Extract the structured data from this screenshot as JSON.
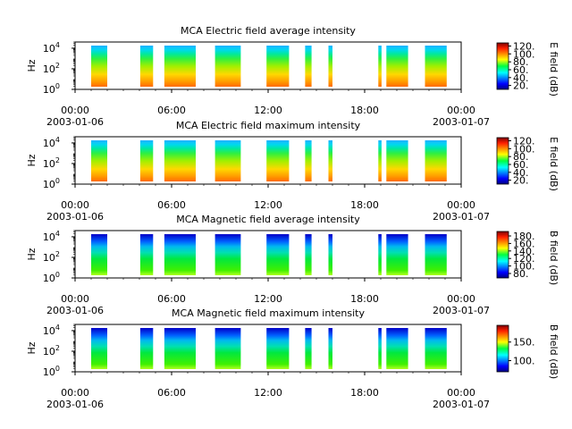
{
  "chart_data": [
    {
      "type": "heatmap",
      "title": "MCA  Electric field average intensity",
      "ylabel": "Hz",
      "y_scale": "log",
      "ylim": [
        1,
        40000
      ],
      "y_ticks": [
        {
          "base": "10",
          "exp": "0"
        },
        {
          "base": "10",
          "exp": "2"
        },
        {
          "base": "10",
          "exp": "4"
        }
      ],
      "xlim": [
        "2003-01-06 00:00",
        "2003-01-07 00:00"
      ],
      "x_ticks": [
        "00:00",
        "06:00",
        "12:00",
        "18:00",
        "00:00"
      ],
      "x_dates": {
        "start": "2003-01-06",
        "end": "2003-01-07"
      },
      "colorbar": {
        "label": "E field (dB)",
        "ticks": [
          "20.",
          "40.",
          "60.",
          "80.",
          "100.",
          "120."
        ],
        "range": [
          10,
          128
        ],
        "colormap": "jet"
      },
      "palette": "efield",
      "data_segments_hours": [
        [
          1.0,
          2.0
        ],
        [
          4.05,
          4.85
        ],
        [
          5.55,
          7.5
        ],
        [
          8.7,
          10.3
        ],
        [
          11.9,
          13.3
        ],
        [
          14.3,
          14.7
        ],
        [
          15.75,
          16.0
        ],
        [
          18.85,
          19.05
        ],
        [
          19.35,
          20.7
        ],
        [
          21.75,
          23.1
        ]
      ]
    },
    {
      "type": "heatmap",
      "title": "MCA  Electric field maximum intensity",
      "ylabel": "Hz",
      "y_scale": "log",
      "ylim": [
        1,
        40000
      ],
      "y_ticks": [
        {
          "base": "10",
          "exp": "0"
        },
        {
          "base": "10",
          "exp": "2"
        },
        {
          "base": "10",
          "exp": "4"
        }
      ],
      "xlim": [
        "2003-01-06 00:00",
        "2003-01-07 00:00"
      ],
      "x_ticks": [
        "00:00",
        "06:00",
        "12:00",
        "18:00",
        "00:00"
      ],
      "x_dates": {
        "start": "2003-01-06",
        "end": "2003-01-07"
      },
      "colorbar": {
        "label": "E field (dB)",
        "ticks": [
          "20.",
          "40.",
          "60.",
          "80.",
          "100.",
          "120."
        ],
        "range": [
          10,
          128
        ],
        "colormap": "jet"
      },
      "palette": "efield",
      "data_segments_hours": [
        [
          1.0,
          2.0
        ],
        [
          4.05,
          4.85
        ],
        [
          5.55,
          7.5
        ],
        [
          8.7,
          10.3
        ],
        [
          11.9,
          13.3
        ],
        [
          14.3,
          14.7
        ],
        [
          15.75,
          16.0
        ],
        [
          18.85,
          19.05
        ],
        [
          19.35,
          20.7
        ],
        [
          21.75,
          23.1
        ]
      ]
    },
    {
      "type": "heatmap",
      "title": "MCA  Magnetic field average intensity",
      "ylabel": "Hz",
      "y_scale": "log",
      "ylim": [
        1,
        40000
      ],
      "y_ticks": [
        {
          "base": "10",
          "exp": "0"
        },
        {
          "base": "10",
          "exp": "2"
        },
        {
          "base": "10",
          "exp": "4"
        }
      ],
      "xlim": [
        "2003-01-06 00:00",
        "2003-01-07 00:00"
      ],
      "x_ticks": [
        "00:00",
        "06:00",
        "12:00",
        "18:00",
        "00:00"
      ],
      "x_dates": {
        "start": "2003-01-06",
        "end": "2003-01-07"
      },
      "colorbar": {
        "label": "B field (dB)",
        "ticks": [
          "80.",
          "100.",
          "120.",
          "140.",
          "160.",
          "180."
        ],
        "range": [
          68,
          192
        ],
        "colormap": "jet"
      },
      "palette": "bfield",
      "data_segments_hours": [
        [
          1.0,
          2.0
        ],
        [
          4.05,
          4.85
        ],
        [
          5.55,
          7.5
        ],
        [
          8.7,
          10.3
        ],
        [
          11.9,
          13.3
        ],
        [
          14.3,
          14.7
        ],
        [
          15.75,
          16.0
        ],
        [
          18.85,
          19.05
        ],
        [
          19.35,
          20.7
        ],
        [
          21.75,
          23.1
        ]
      ]
    },
    {
      "type": "heatmap",
      "title": "MCA  Magnetic field maximum intensity",
      "ylabel": "Hz",
      "y_scale": "log",
      "ylim": [
        1,
        40000
      ],
      "y_ticks": [
        {
          "base": "10",
          "exp": "0"
        },
        {
          "base": "10",
          "exp": "2"
        },
        {
          "base": "10",
          "exp": "4"
        }
      ],
      "xlim": [
        "2003-01-06 00:00",
        "2003-01-07 00:00"
      ],
      "x_ticks": [
        "00:00",
        "06:00",
        "12:00",
        "18:00",
        "00:00"
      ],
      "x_dates": {
        "start": "2003-01-06",
        "end": "2003-01-07"
      },
      "colorbar": {
        "label": "B field (dB)",
        "ticks": [
          "100.",
          "150."
        ],
        "range": [
          70,
          195
        ],
        "colormap": "jet"
      },
      "palette": "bfield",
      "data_segments_hours": [
        [
          1.0,
          2.0
        ],
        [
          4.05,
          4.85
        ],
        [
          5.55,
          7.5
        ],
        [
          8.7,
          10.3
        ],
        [
          11.9,
          13.3
        ],
        [
          14.3,
          14.7
        ],
        [
          15.75,
          16.0
        ],
        [
          18.85,
          19.05
        ],
        [
          19.35,
          20.7
        ],
        [
          21.75,
          23.1
        ]
      ]
    }
  ]
}
